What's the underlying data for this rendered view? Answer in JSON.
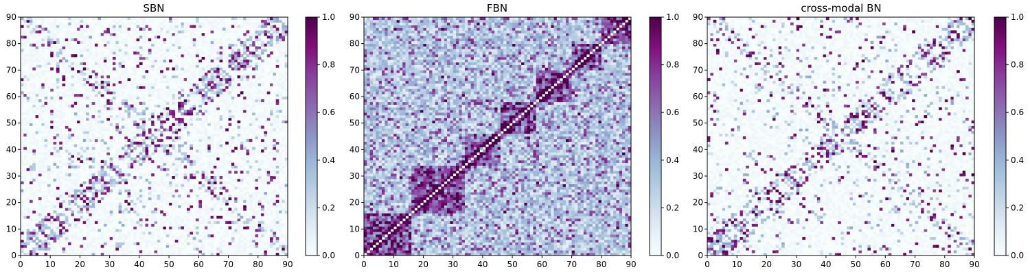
{
  "chart_data": [
    {
      "type": "heatmap",
      "title": "SBN",
      "xlabel": "",
      "ylabel": "",
      "xlim": [
        0,
        90
      ],
      "ylim": [
        0,
        90
      ],
      "x_ticks": [
        "0",
        "10",
        "20",
        "30",
        "40",
        "50",
        "60",
        "70",
        "80",
        "90"
      ],
      "y_ticks": [
        "0",
        "10",
        "20",
        "30",
        "40",
        "50",
        "60",
        "70",
        "80",
        "90"
      ],
      "colorbar": {
        "range": [
          0,
          1
        ],
        "ticks": [
          "0.0",
          "0.2",
          "0.4",
          "0.6",
          "0.8",
          "1.0"
        ]
      },
      "colormap": [
        "#f7fcfd",
        "#e0ecf4",
        "#bfd3e6",
        "#9ebcda",
        "#8c96c6",
        "#8c6bb1",
        "#88419d",
        "#810f7c",
        "#4d004b"
      ],
      "grid": false,
      "pattern": {
        "density": 0.04,
        "diag_strength": 0.6,
        "block_strength": 0.05,
        "sparse": true,
        "seed": 11
      }
    },
    {
      "type": "heatmap",
      "title": "FBN",
      "xlabel": "",
      "ylabel": "",
      "xlim": [
        0,
        90
      ],
      "ylim": [
        0,
        90
      ],
      "x_ticks": [
        "0",
        "10",
        "20",
        "30",
        "40",
        "50",
        "60",
        "70",
        "80",
        "90"
      ],
      "y_ticks": [
        "0",
        "10",
        "20",
        "30",
        "40",
        "50",
        "60",
        "70",
        "80",
        "90"
      ],
      "colorbar": {
        "range": [
          0,
          1
        ],
        "ticks": [
          "0.0",
          "0.2",
          "0.4",
          "0.6",
          "0.8",
          "1.0"
        ]
      },
      "colormap": [
        "#f7fcfd",
        "#e0ecf4",
        "#bfd3e6",
        "#9ebcda",
        "#8c96c6",
        "#8c6bb1",
        "#88419d",
        "#810f7c",
        "#4d004b"
      ],
      "grid": false,
      "pattern": {
        "density": 0.6,
        "diag_strength": 0.9,
        "block_strength": 0.55,
        "sparse": false,
        "seed": 23
      }
    },
    {
      "type": "heatmap",
      "title": "cross-modal BN",
      "xlabel": "",
      "ylabel": "",
      "xlim": [
        0,
        90
      ],
      "ylim": [
        0,
        90
      ],
      "x_ticks": [
        "0",
        "10",
        "20",
        "30",
        "40",
        "50",
        "60",
        "70",
        "80",
        "90"
      ],
      "y_ticks": [
        "0",
        "10",
        "20",
        "30",
        "40",
        "50",
        "60",
        "70",
        "80",
        "90"
      ],
      "colorbar": {
        "range": [
          0,
          1
        ],
        "ticks": [
          "0.0",
          "0.2",
          "0.4",
          "0.6",
          "0.8",
          "1.0"
        ]
      },
      "colormap": [
        "#f7fcfd",
        "#e0ecf4",
        "#bfd3e6",
        "#9ebcda",
        "#8c96c6",
        "#8c6bb1",
        "#88419d",
        "#810f7c",
        "#4d004b"
      ],
      "grid": false,
      "pattern": {
        "density": 0.035,
        "diag_strength": 0.7,
        "block_strength": 0.0,
        "sparse": true,
        "seed": 37
      }
    }
  ]
}
